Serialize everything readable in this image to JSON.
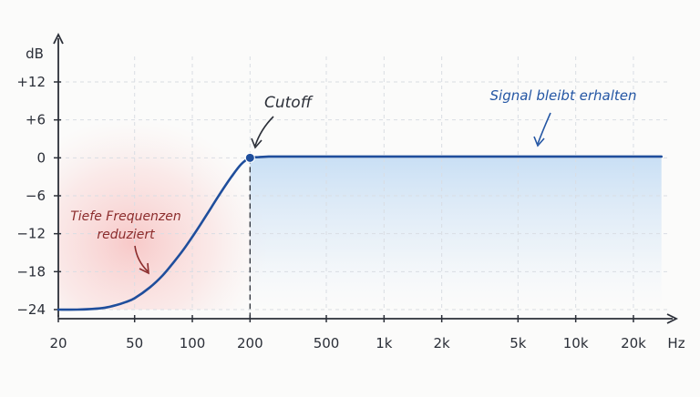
{
  "chart_data": {
    "type": "line",
    "x_scale": "log",
    "x_ticks": [
      20,
      50,
      100,
      200,
      500,
      1000,
      2000,
      5000,
      10000,
      20000
    ],
    "x_tick_labels": [
      "20",
      "50",
      "100",
      "200",
      "500",
      "1k",
      "2k",
      "5k",
      "10k",
      "20k"
    ],
    "y_ticks": [
      12,
      6,
      0,
      -6,
      -12,
      -18,
      -24
    ],
    "y_tick_labels": [
      "+12",
      "+6",
      "0",
      "−6",
      "−12",
      "−18",
      "−24"
    ],
    "xlabel": "Hz",
    "ylabel": "dB",
    "xlim": [
      20,
      30000
    ],
    "ylim": [
      -24,
      12
    ],
    "grid": true,
    "series": [
      {
        "color": "#1f4e9c",
        "x": [
          20,
          25,
          30,
          35,
          40,
          45,
          50,
          60,
          70,
          80,
          90,
          100,
          110,
          120,
          140,
          160,
          180,
          200,
          220,
          250,
          300,
          500,
          1000,
          2000,
          5000,
          10000,
          20000,
          28000
        ],
        "y": [
          -24,
          -24,
          -23.9,
          -23.7,
          -23.3,
          -22.8,
          -22.2,
          -20.5,
          -18.6,
          -16.5,
          -14.5,
          -12.5,
          -10.6,
          -8.8,
          -5.6,
          -3,
          -1,
          0,
          0.1,
          0.2,
          0.2,
          0.2,
          0.2,
          0.2,
          0.2,
          0.2,
          0.2,
          0.2
        ]
      }
    ],
    "cutoff": {
      "x": 200,
      "y": 0,
      "label": "Cutoff"
    },
    "annotations": [
      {
        "text": "Signal bleibt erhalten",
        "x": 6000,
        "y": 6,
        "color": "#2456a4"
      },
      {
        "text_lines": [
          "Tiefe Frequenzen",
          "reduziert"
        ],
        "x": 40,
        "y": -12,
        "color": "#8c2d2d"
      }
    ],
    "regions": [
      {
        "name": "reduced",
        "color": "#f06a6a"
      },
      {
        "name": "passband",
        "color": "#8fbfee"
      }
    ]
  }
}
